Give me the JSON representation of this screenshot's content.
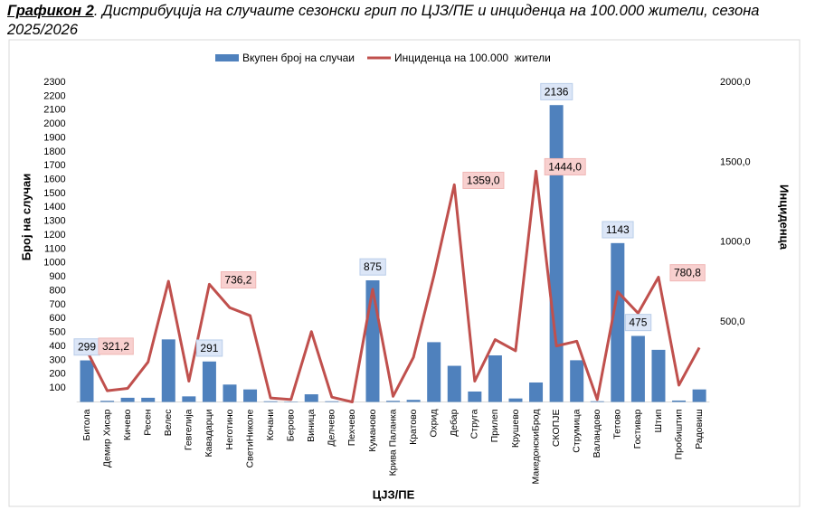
{
  "chart_data": {
    "type": "bar-line",
    "title_prefix": "Графикон 2",
    "title": ". Дистрибуција на случаите сезонски грип по ЦЈЗ/ПЕ и инциденца на 100.000 жители, сезона 2025/2026",
    "xlabel": "ЦЈЗ/ПЕ",
    "ylabel": "Број на случаи",
    "y2label": "Инциденца",
    "categories": [
      "Битола",
      "Демир Хисар",
      "Кичево",
      "Ресен",
      "Велес",
      "Гевгелија",
      "Кавадарци",
      "Неготино",
      "СветиНиколе",
      "Кочани",
      "Берово",
      "Виница",
      "Делчево",
      "Пехчево",
      "Куманово",
      "Крива Паланка",
      "Кратово",
      "Охрид",
      "Дебар",
      "Струга",
      "Прилеп",
      "Крушево",
      "МакедонскиБрод",
      "СКОПЈЕ",
      "Струмица",
      "Валандово",
      "Тетово",
      "Гостивар",
      "Штип",
      "Пробиштип",
      "Радовиш"
    ],
    "series": [
      {
        "name": "Вкупен број на случаи",
        "type": "bar",
        "color": "#4f81bd",
        "values": [
          299,
          8,
          30,
          30,
          450,
          40,
          291,
          125,
          90,
          5,
          3,
          55,
          5,
          0,
          875,
          8,
          15,
          430,
          260,
          75,
          335,
          25,
          140,
          2136,
          300,
          5,
          1143,
          475,
          375,
          10,
          90
        ],
        "value_labels": [
          "299",
          null,
          null,
          null,
          null,
          null,
          "291",
          null,
          null,
          null,
          null,
          null,
          null,
          null,
          "875",
          null,
          null,
          null,
          null,
          null,
          null,
          null,
          null,
          "2136",
          null,
          null,
          "1143",
          "475",
          null,
          null,
          null
        ]
      },
      {
        "name": "Инциденца на 100.000  жители",
        "type": "line",
        "axis": "y2",
        "color": "#c0504d",
        "values": [
          321.2,
          70,
          85,
          250,
          755,
          130,
          736.2,
          590,
          540,
          25,
          15,
          440,
          30,
          0,
          705,
          35,
          280,
          790,
          1359.0,
          130,
          390,
          320,
          1444.0,
          350,
          380,
          15,
          690,
          555,
          780.8,
          105,
          340
        ],
        "value_labels": [
          "321,2",
          null,
          null,
          null,
          null,
          null,
          "736,2",
          null,
          null,
          null,
          null,
          null,
          null,
          null,
          null,
          null,
          null,
          null,
          "1359,0",
          null,
          null,
          null,
          "1444,0",
          null,
          null,
          null,
          null,
          null,
          "780,8",
          null,
          null
        ]
      }
    ],
    "ylim": [
      0,
      2300
    ],
    "yticks": [
      100,
      200,
      300,
      400,
      500,
      600,
      700,
      800,
      900,
      1000,
      1100,
      1200,
      1300,
      1400,
      1500,
      1600,
      1700,
      1800,
      1900,
      2000,
      2100,
      2200,
      2300
    ],
    "y2lim": [
      0,
      2000
    ],
    "y2ticks": [
      {
        "value": 500,
        "label": "500,0"
      },
      {
        "value": 1000,
        "label": "1000,0"
      },
      {
        "value": 1500,
        "label": "1500,0"
      },
      {
        "value": 2000,
        "label": "2000,0"
      }
    ],
    "legend": "top"
  }
}
